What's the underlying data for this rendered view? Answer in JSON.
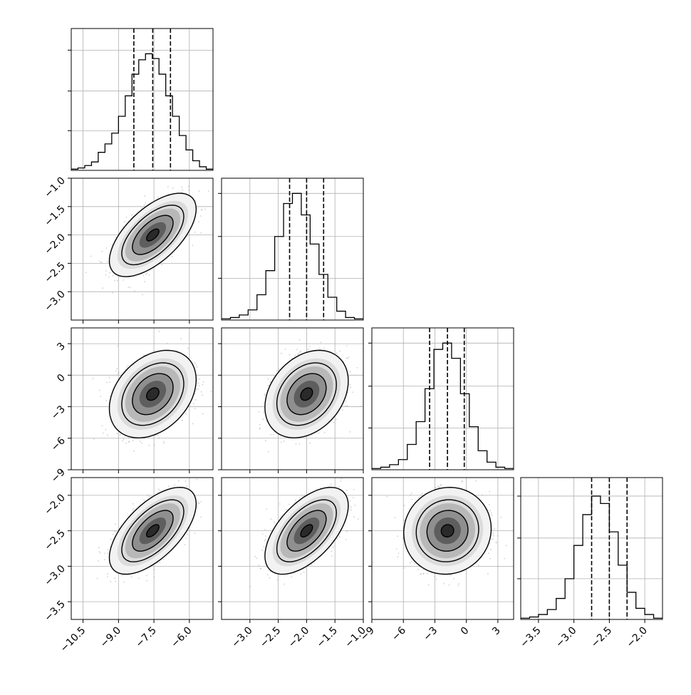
{
  "chart_data": {
    "type": "corner",
    "n_params": 4,
    "grid": true,
    "params": [
      {
        "index": 0,
        "range": [
          -11.0,
          -5.0
        ],
        "ticks": [
          -10.5,
          -9.0,
          -7.5,
          -6.0
        ],
        "tick_labels": [
          "−10.5",
          "−9.0",
          "−7.5",
          "−6.0"
        ],
        "quantiles": [
          -8.35,
          -7.55,
          -6.8
        ],
        "mean": -7.55,
        "sd": 0.75,
        "hist_density": [
          0.01,
          0.02,
          0.04,
          0.07,
          0.15,
          0.22,
          0.31,
          0.45,
          0.62,
          0.8,
          0.92,
          0.97,
          0.93,
          0.8,
          0.62,
          0.45,
          0.29,
          0.17,
          0.08,
          0.03,
          0.01
        ],
        "hist_ylim": [
          0,
          1.18
        ]
      },
      {
        "index": 1,
        "range": [
          -3.5,
          -1.0
        ],
        "ticks": [
          -3.0,
          -2.5,
          -2.0,
          -1.5,
          -1.0
        ],
        "tick_labels": [
          "−3.0",
          "−2.5",
          "−2.0",
          "−1.5",
          "−1.0"
        ],
        "quantiles": [
          -2.3,
          -2.0,
          -1.7
        ],
        "mean": -2.0,
        "sd": 0.3,
        "hist_density": [
          0.01,
          0.02,
          0.04,
          0.08,
          0.2,
          0.39,
          0.66,
          0.92,
          1.0,
          0.83,
          0.6,
          0.36,
          0.18,
          0.07,
          0.02,
          0.01
        ],
        "hist_ylim": [
          0,
          1.12
        ]
      },
      {
        "index": 2,
        "range": [
          -9.0,
          4.5
        ],
        "ticks": [
          -9,
          -6,
          -3,
          0,
          3
        ],
        "tick_labels": [
          "−9",
          "−6",
          "−3",
          "0",
          "3"
        ],
        "quantiles": [
          -3.5,
          -1.8,
          -0.2
        ],
        "mean": -1.8,
        "sd": 1.7,
        "hist_density": [
          0.01,
          0.02,
          0.04,
          0.08,
          0.2,
          0.38,
          0.64,
          0.95,
          1.0,
          0.88,
          0.6,
          0.34,
          0.15,
          0.06,
          0.02,
          0.01
        ],
        "hist_ylim": [
          0,
          1.12
        ]
      },
      {
        "index": 3,
        "range": [
          -3.75,
          -1.75
        ],
        "ticks": [
          -3.5,
          -3.0,
          -2.5,
          -2.0
        ],
        "tick_labels": [
          "−3.5",
          "−3.0",
          "−2.5",
          "−2.0"
        ],
        "quantiles": [
          -2.75,
          -2.5,
          -2.25
        ],
        "mean": -2.5,
        "sd": 0.25,
        "hist_density": [
          0.01,
          0.02,
          0.04,
          0.08,
          0.17,
          0.33,
          0.6,
          0.85,
          1.0,
          0.94,
          0.71,
          0.44,
          0.22,
          0.09,
          0.04,
          0.01
        ],
        "hist_ylim": [
          0,
          1.15
        ]
      }
    ],
    "pairs": [
      {
        "x": 0,
        "y": 1,
        "correlation": 0.62
      },
      {
        "x": 0,
        "y": 2,
        "correlation": 0.33
      },
      {
        "x": 1,
        "y": 2,
        "correlation": 0.3
      },
      {
        "x": 0,
        "y": 3,
        "correlation": 0.62
      },
      {
        "x": 1,
        "y": 3,
        "correlation": 0.58
      },
      {
        "x": 2,
        "y": 3,
        "correlation": 0.05
      }
    ]
  }
}
